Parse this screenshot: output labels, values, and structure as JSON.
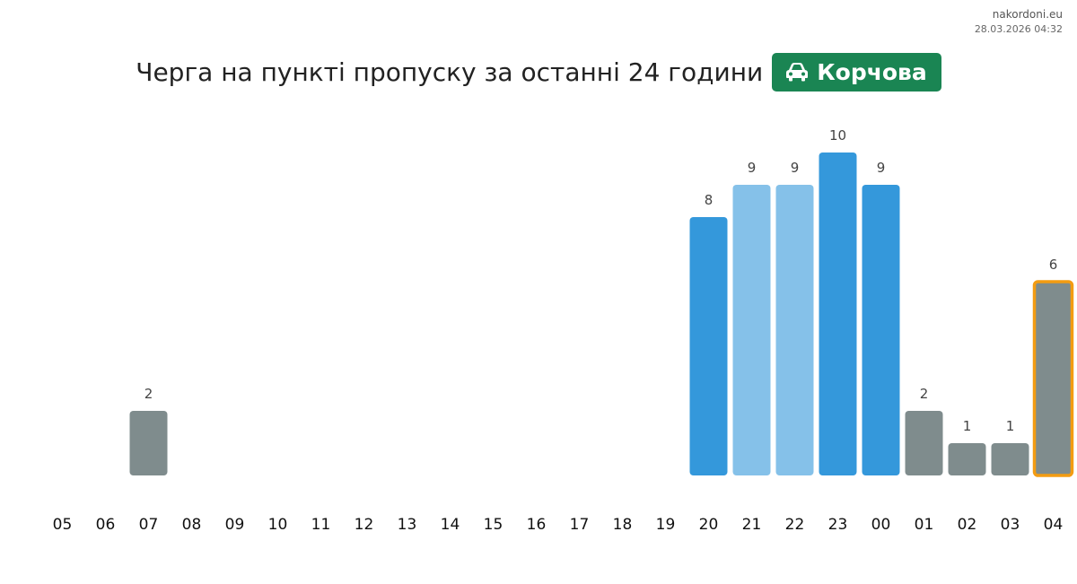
{
  "site": {
    "name": "nakordoni.eu",
    "timestamp": "28.03.2026 04:32"
  },
  "header": {
    "title": "Черга на пункті пропуску за останні 24 години",
    "checkpoint": "Корчова",
    "checkpoint_icon": "car-icon",
    "badge_color": "#1a8553"
  },
  "colors": {
    "grey": "#7f8c8d",
    "blue": "#3498db",
    "light_blue": "#85c1e9",
    "current_outline": "#f39c12",
    "label": "#444444"
  },
  "chart_data": {
    "type": "bar",
    "title": "Черга на пункті пропуску за останні 24 години",
    "xlabel": "",
    "ylabel": "",
    "categories": [
      "05",
      "06",
      "07",
      "08",
      "09",
      "10",
      "11",
      "12",
      "13",
      "14",
      "15",
      "16",
      "17",
      "18",
      "19",
      "20",
      "21",
      "22",
      "23",
      "00",
      "01",
      "02",
      "03",
      "04"
    ],
    "values": [
      0,
      0,
      2,
      0,
      0,
      0,
      0,
      0,
      0,
      0,
      0,
      0,
      0,
      0,
      0,
      8,
      9,
      9,
      10,
      9,
      2,
      1,
      1,
      6
    ],
    "bar_colors": [
      "grey",
      "grey",
      "grey",
      "grey",
      "grey",
      "grey",
      "grey",
      "grey",
      "grey",
      "grey",
      "grey",
      "grey",
      "grey",
      "grey",
      "grey",
      "blue",
      "light_blue",
      "light_blue",
      "blue",
      "blue",
      "grey",
      "grey",
      "grey",
      "grey"
    ],
    "highlighted_category": "04",
    "ylim": [
      0,
      10
    ],
    "grid": false,
    "legend": "none"
  }
}
